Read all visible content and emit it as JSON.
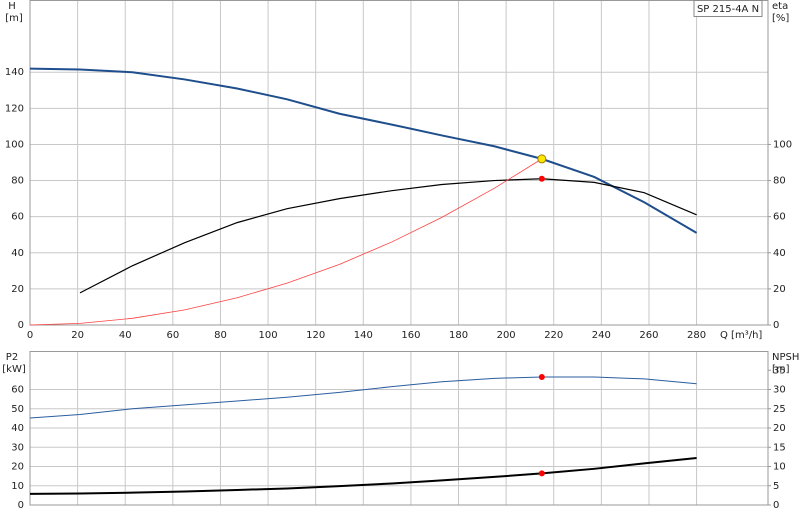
{
  "chart_data": [
    {
      "type": "line",
      "label": "SP 215-4A N",
      "x_label": "Q [m³/h]",
      "y_label": "H",
      "y_unit": "[m]",
      "y2_label": "eta",
      "y2_unit": "[%]",
      "xlim": [
        0,
        310
      ],
      "xticks": [
        0,
        20,
        40,
        60,
        80,
        100,
        120,
        140,
        160,
        180,
        200,
        220,
        240,
        260,
        280
      ],
      "ylim": [
        0,
        180
      ],
      "yticks": [
        0,
        20,
        40,
        60,
        80,
        100,
        120,
        140
      ],
      "y2lim": [
        0,
        180
      ],
      "y2ticks": [
        0,
        20,
        40,
        60,
        80,
        100
      ],
      "grid": true,
      "show_xtick_labels": true,
      "x": [
        0,
        21,
        43,
        65,
        87,
        108,
        130,
        152,
        173,
        195,
        215,
        237,
        258,
        280
      ],
      "series": [
        {
          "color": "#1f4e8c",
          "width": 2,
          "values": [
            142,
            141.5,
            140,
            136,
            131,
            125,
            117,
            111,
            105,
            99,
            92,
            82,
            68,
            51
          ]
        },
        {
          "color": "#000000",
          "width": 1.2,
          "axis": "y2",
          "values": [
            null,
            17.8,
            32.8,
            45.6,
            56.7,
            64.4,
            70,
            74.4,
            77.8,
            80,
            81,
            79,
            73.3,
            61
          ]
        },
        {
          "color": "#ff4040",
          "width": 0.8,
          "values": [
            0,
            0.9,
            3.7,
            8.4,
            15.1,
            23.2,
            33.6,
            46,
            59.6,
            75.7,
            92,
            null,
            null,
            null
          ]
        }
      ],
      "markers": [
        {
          "x": 215,
          "y": 92,
          "color": "#ffe600"
        },
        {
          "x": 215,
          "y": 81,
          "color": "#ff0000",
          "axis": "y2"
        }
      ]
    },
    {
      "type": "line",
      "y_label": "P2",
      "y_unit": "[kW]",
      "y2_label": "NPSH",
      "y2_unit": "[m]",
      "xlim": [
        0,
        310
      ],
      "xticks": [
        0,
        20,
        40,
        60,
        80,
        100,
        120,
        140,
        160,
        180,
        200,
        220,
        240,
        260,
        280
      ],
      "ylim": [
        0,
        80
      ],
      "yticks": [
        0,
        10,
        20,
        30,
        40,
        50,
        60
      ],
      "y2lim": [
        0,
        40
      ],
      "y2ticks": [
        0,
        5,
        10,
        15,
        20,
        25,
        30,
        35
      ],
      "grid": true,
      "show_xtick_labels": false,
      "x": [
        0,
        21,
        43,
        65,
        87,
        108,
        130,
        152,
        173,
        195,
        215,
        237,
        258,
        280
      ],
      "series": [
        {
          "color": "#2b5ea0",
          "width": 1,
          "values": [
            45.2,
            47,
            50,
            52,
            54,
            56,
            58.5,
            61.5,
            64,
            65.8,
            66.5,
            66.5,
            65.5,
            63
          ]
        },
        {
          "color": "#000000",
          "width": 2,
          "axis": "y2",
          "values": [
            2.9,
            3,
            3.2,
            3.5,
            3.9,
            4.3,
            4.9,
            5.6,
            6.4,
            7.3,
            8.2,
            9.4,
            10.8,
            12.2
          ]
        }
      ],
      "markers": [
        {
          "x": 215,
          "y": 66.5,
          "color": "#ff0000"
        },
        {
          "x": 215,
          "y": 8.2,
          "color": "#ff0000",
          "axis": "y2"
        }
      ]
    }
  ]
}
